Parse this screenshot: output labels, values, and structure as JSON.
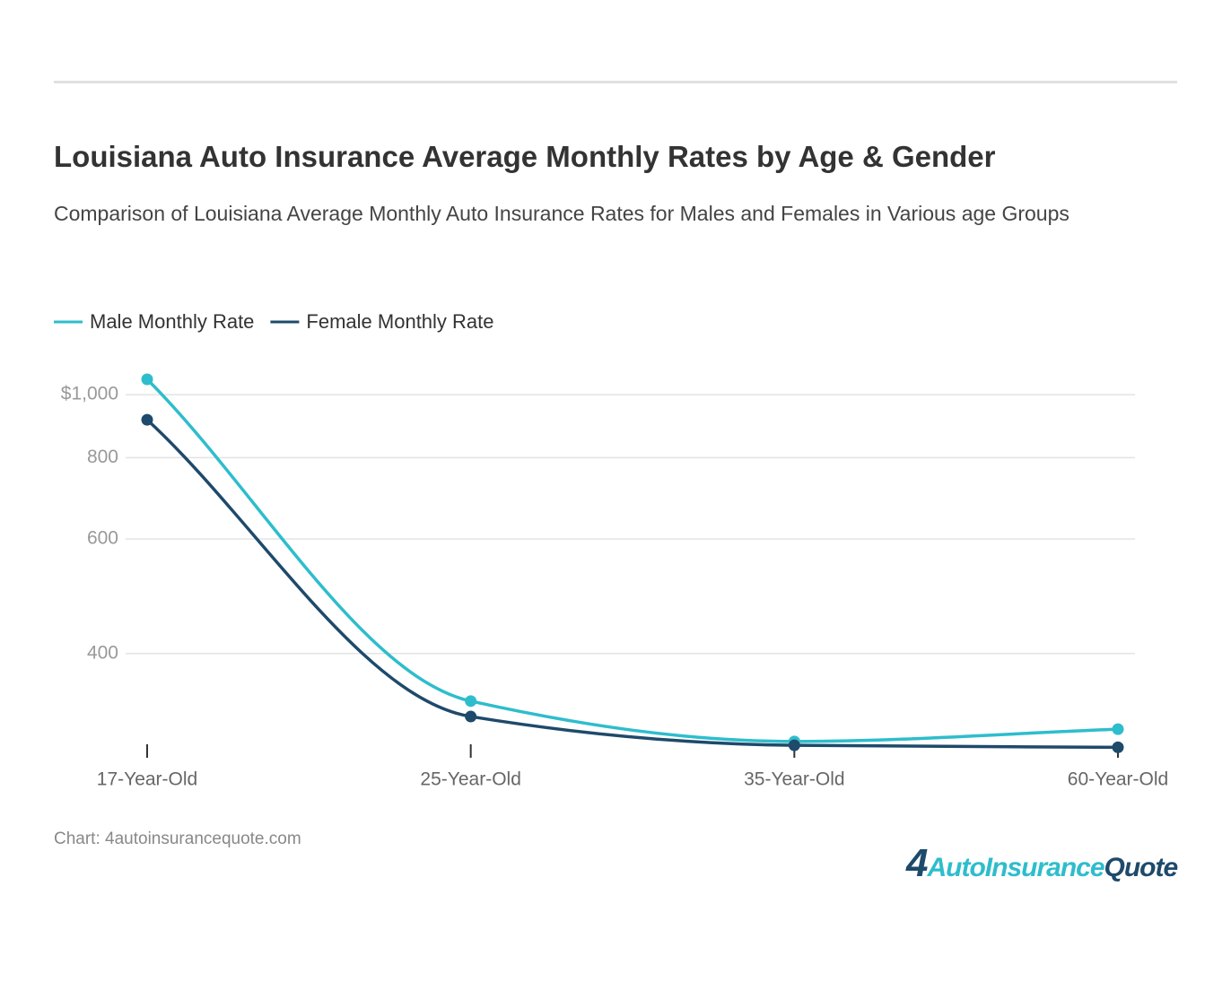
{
  "chart_data": {
    "type": "line",
    "title": "Louisiana Auto Insurance Average Monthly Rates by Age & Gender",
    "subtitle": "Comparison of Louisiana Average Monthly Auto Insurance Rates for Males and Females in Various age Groups",
    "categories": [
      "17-Year-Old",
      "25-Year-Old",
      "35-Year-Old",
      "60-Year-Old"
    ],
    "series": [
      {
        "name": "Male Monthly Rate",
        "color": "#2ebdcc",
        "values": [
          1056,
          338,
          293,
          306
        ]
      },
      {
        "name": "Female Monthly Rate",
        "color": "#1e4a6b",
        "values": [
          915,
          320,
          289,
          287
        ]
      }
    ],
    "ylim": [
      281,
      1118
    ],
    "log_scale": true,
    "grid": true,
    "legend": "top-left",
    "yticks": [
      400,
      600,
      800,
      {
        "value": 1000,
        "label": "$1,000"
      }
    ],
    "source": "Chart: 4autoinsurancequote.com",
    "logo": [
      "4",
      "AutoInsurance",
      "Quote"
    ]
  }
}
